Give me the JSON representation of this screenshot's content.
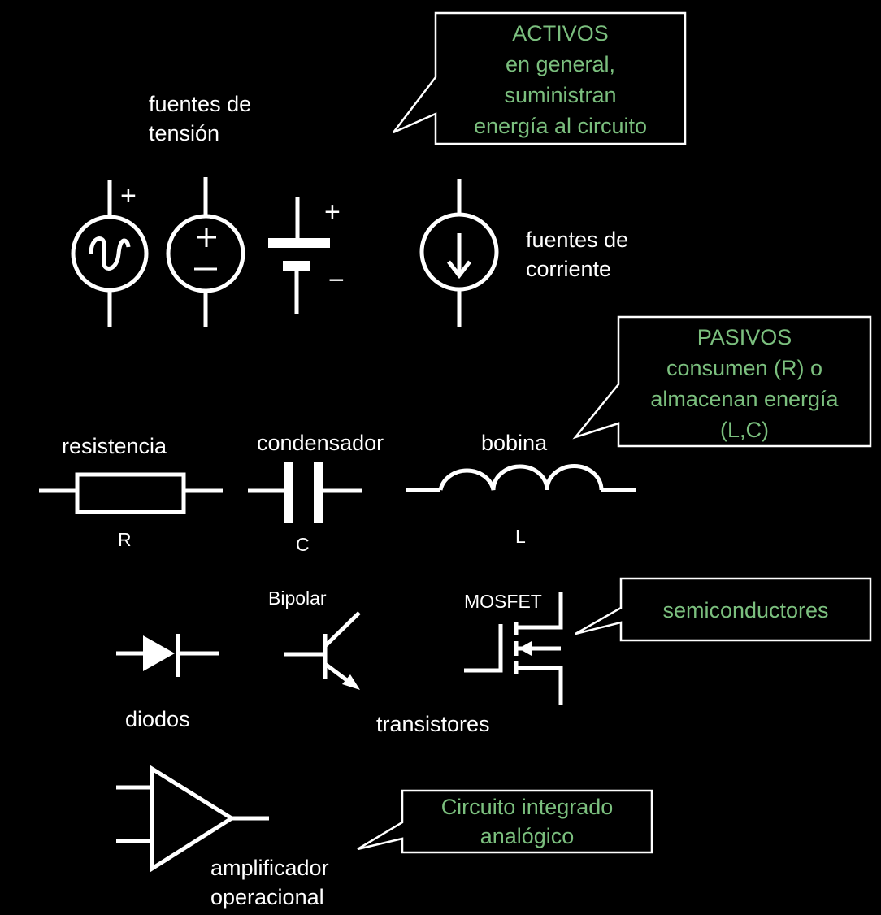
{
  "colors": {
    "background": "#000000",
    "symbol": "#ffffff",
    "callout_text": "#7bbf7e"
  },
  "labels": {
    "fuentes_tension": [
      "fuentes de",
      "tensión"
    ],
    "fuentes_corriente": [
      "fuentes de",
      "corriente"
    ],
    "resistencia": "resistencia",
    "resistencia_symbol": "R",
    "condensador": "condensador",
    "condensador_symbol": "C",
    "bobina": "bobina",
    "bobina_symbol": "L",
    "diodos": "diodos",
    "bipolar": "Bipolar",
    "mosfet": "MOSFET",
    "transistores": "transistores",
    "amplificador": [
      "amplificador",
      "operacional"
    ]
  },
  "polarity": {
    "plus": "+",
    "minus": "−"
  },
  "callouts": {
    "activos": [
      "ACTIVOS",
      "en general,",
      "suministran",
      "energía al circuito"
    ],
    "pasivos": [
      "PASIVOS",
      "consumen (R) o",
      "almacenan energía",
      "(L,C)"
    ],
    "semiconductores": [
      "semiconductores"
    ],
    "circuito_integrado": [
      "Circuito integrado",
      "analógico"
    ]
  },
  "icons": [
    "ac-voltage-source-icon",
    "dc-voltage-source-icon",
    "battery-icon",
    "current-source-icon",
    "resistor-icon",
    "capacitor-icon",
    "inductor-icon",
    "diode-icon",
    "bipolar-transistor-icon",
    "mosfet-icon",
    "op-amp-icon"
  ]
}
